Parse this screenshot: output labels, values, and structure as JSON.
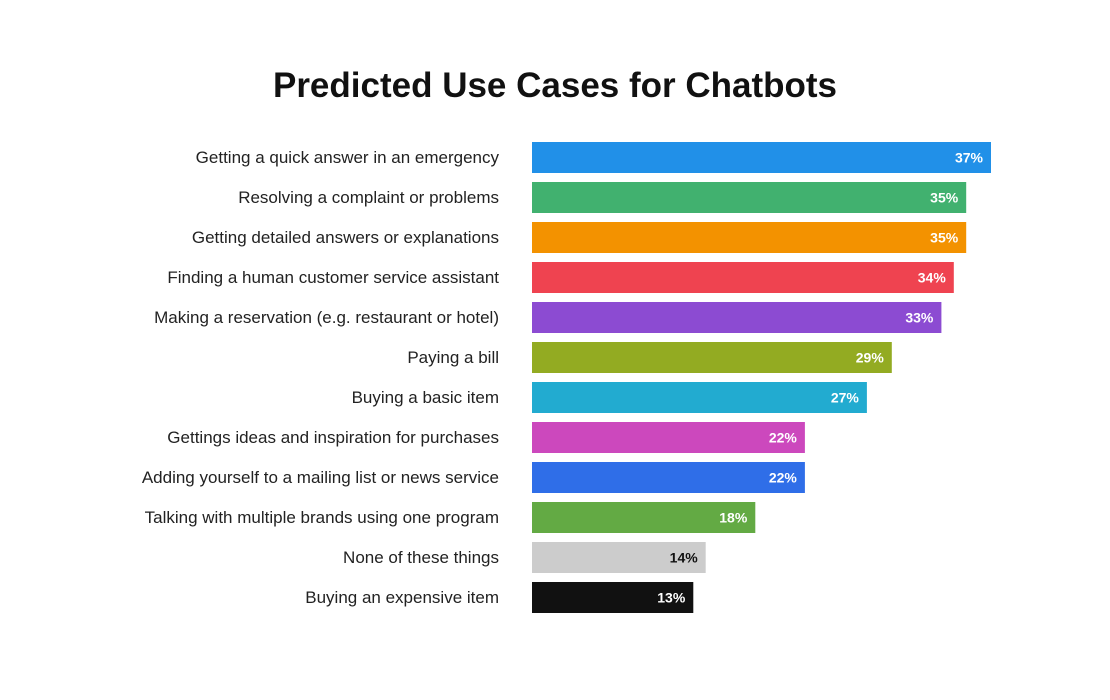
{
  "chart_data": {
    "type": "bar",
    "orientation": "horizontal",
    "title": "Predicted Use Cases for Chatbots",
    "xlabel": "",
    "ylabel": "",
    "grid": false,
    "value_suffix": "%",
    "xlim": [
      0,
      37
    ],
    "categories": [
      "Getting a quick answer in an emergency",
      "Resolving a complaint or problems",
      "Getting detailed answers or explanations",
      "Finding a human customer service assistant",
      "Making a reservation (e.g. restaurant or hotel)",
      "Paying a bill",
      "Buying a basic item",
      "Gettings ideas and inspiration for purchases",
      "Adding yourself to a mailing list or news service",
      "Talking with multiple brands using one program",
      "None of these things",
      "Buying an expensive item"
    ],
    "values": [
      37,
      35,
      35,
      34,
      33,
      29,
      27,
      22,
      22,
      18,
      14,
      13
    ],
    "value_labels": [
      "37%",
      "35%",
      "35%",
      "34%",
      "33%",
      "29%",
      "27%",
      "22%",
      "22%",
      "18%",
      "14%",
      "13%"
    ],
    "colors": [
      "#2190e8",
      "#41b16f",
      "#f39200",
      "#ef4350",
      "#8c4bd2",
      "#93ab22",
      "#22abd0",
      "#cc48bd",
      "#2f6ee8",
      "#63aa44",
      "#cccccc",
      "#111111"
    ],
    "label_colors": [
      "#ffffff",
      "#ffffff",
      "#ffffff",
      "#ffffff",
      "#ffffff",
      "#ffffff",
      "#ffffff",
      "#ffffff",
      "#ffffff",
      "#ffffff",
      "#111111",
      "#ffffff"
    ]
  }
}
